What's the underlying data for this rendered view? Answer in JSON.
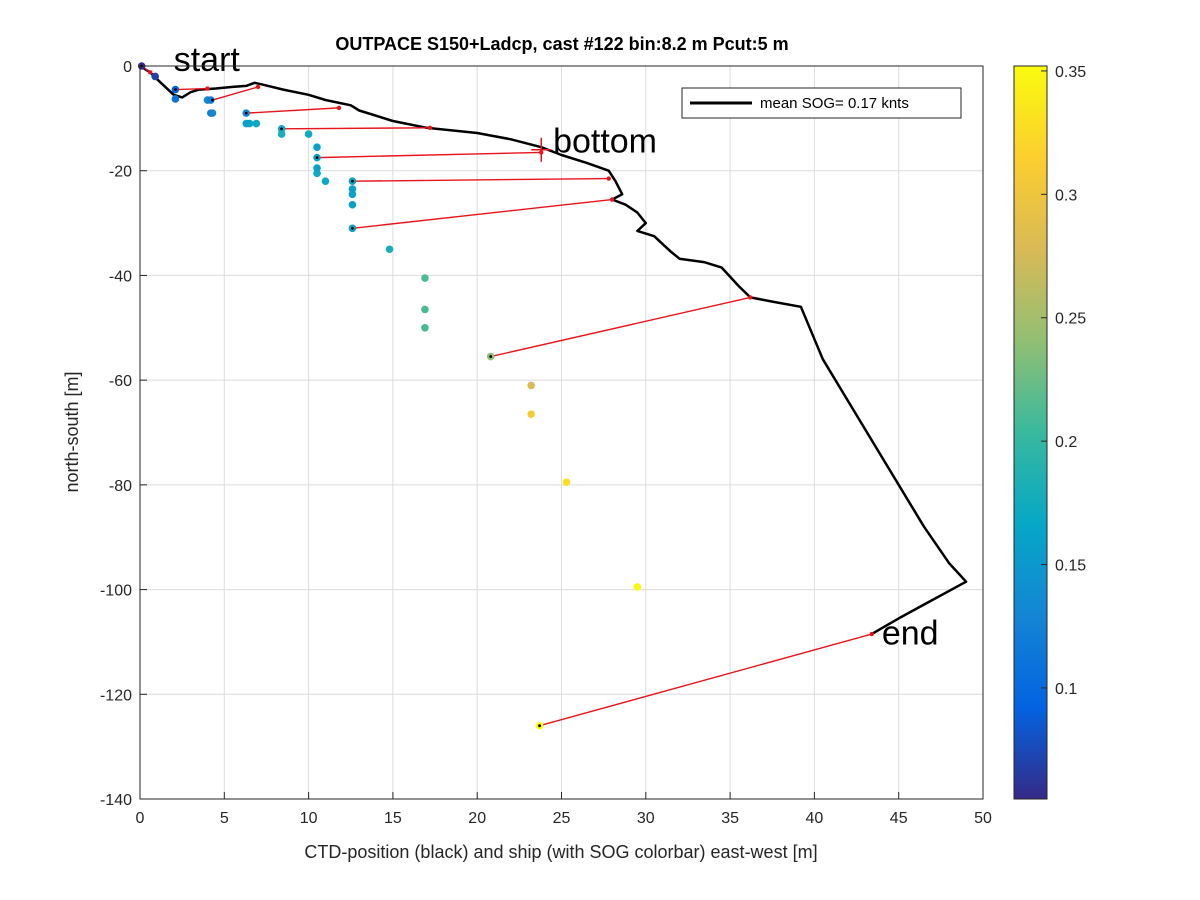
{
  "chart_data": {
    "type": "scatter",
    "title": "OUTPACE S150+Ladcp, cast #122 bin:8.2 m  Pcut:5 m",
    "xlabel": "CTD-position (black) and ship (with SOG colorbar) east-west [m]",
    "ylabel": "north-south [m]",
    "xlim": [
      0,
      50
    ],
    "ylim": [
      -140,
      0
    ],
    "xticks": [
      0,
      5,
      10,
      15,
      20,
      25,
      30,
      35,
      40,
      45,
      50
    ],
    "yticks": [
      0,
      -20,
      -40,
      -60,
      -80,
      -100,
      -120,
      -140
    ],
    "grid": true,
    "legend": {
      "position": "top-right",
      "entries": [
        "mean SOG=  0.17 knts"
      ]
    },
    "colorbar": {
      "range": [
        0.055,
        0.352
      ],
      "ticks": [
        0.1,
        0.15,
        0.2,
        0.25,
        0.3,
        0.35
      ],
      "colormap": [
        "#352a87",
        "#0363e1",
        "#1485d4",
        "#06a7c6",
        "#38b99e",
        "#92bf73",
        "#d9ba56",
        "#fcce2e",
        "#f9fb0e"
      ]
    },
    "annotations": [
      {
        "text": "start",
        "x": 2.0,
        "y": -1.0
      },
      {
        "text": "bottom",
        "x": 24.5,
        "y": -16.5
      },
      {
        "text": "end",
        "x": 44.0,
        "y": -110.5
      }
    ],
    "bottom_marker": {
      "x": 23.8,
      "y": -16.0
    },
    "ctd_track": {
      "name": "mean SOG=  0.17 knts",
      "x": [
        0,
        0.6,
        1.0,
        1.5,
        2.0,
        2.5,
        3.0,
        3.5,
        4.5,
        5.5,
        6.3,
        6.8,
        7.2,
        8.5,
        10.0,
        11.0,
        12.5,
        13.0,
        15.0,
        17.0,
        20.0,
        22.0,
        23.8,
        25.0,
        26.5,
        27.8,
        28.2,
        28.6,
        28.0,
        28.8,
        29.5,
        30.0,
        29.5,
        30.5,
        31.5,
        32.0,
        33.5,
        34.5,
        35.5,
        36.2,
        37.5,
        39.2,
        40.5,
        42.0,
        43.5,
        45.0,
        46.5,
        48.0,
        49.0,
        47.0,
        45.0,
        43.4
      ],
      "y": [
        0,
        -1.2,
        -2.5,
        -4.0,
        -5.5,
        -6.0,
        -5.0,
        -4.5,
        -4.3,
        -4.0,
        -3.8,
        -3.2,
        -3.5,
        -4.5,
        -5.5,
        -6.5,
        -7.5,
        -8.5,
        -10.5,
        -11.8,
        -12.8,
        -14.0,
        -15.5,
        -17.0,
        -18.5,
        -20.0,
        -22.0,
        -24.5,
        -25.5,
        -26.5,
        -28.0,
        -30.0,
        -31.5,
        -32.5,
        -35.5,
        -36.8,
        -37.5,
        -38.5,
        -42.0,
        -44.2,
        -45.0,
        -46.0,
        -56.0,
        -64.0,
        -72.0,
        -80.0,
        -88.0,
        -95.0,
        -98.5,
        -102.0,
        -105.5,
        -108.5
      ]
    },
    "ship_points": {
      "x": [
        0.1,
        0.9,
        2.1,
        2.1,
        4.0,
        4.2,
        4.2,
        4.3,
        6.3,
        6.3,
        6.5,
        6.9,
        8.4,
        8.4,
        10.0,
        10.5,
        10.5,
        10.5,
        10.5,
        11.0,
        12.6,
        12.6,
        12.6,
        12.6,
        12.6,
        14.8,
        16.9,
        16.9,
        16.9,
        20.8,
        23.2,
        23.2,
        25.3,
        29.5,
        23.7
      ],
      "y": [
        0,
        -2.0,
        -4.5,
        -6.3,
        -6.5,
        -6.5,
        -9.0,
        -9.0,
        -9.0,
        -11.0,
        -11.0,
        -11.0,
        -12.0,
        -13.0,
        -13.0,
        -15.5,
        -17.5,
        -19.5,
        -20.5,
        -22.0,
        -22.0,
        -23.5,
        -24.5,
        -26.5,
        -31.0,
        -35.0,
        -40.5,
        -46.5,
        -50.0,
        -55.5,
        -61.0,
        -66.5,
        -79.5,
        -99.5,
        -126.0
      ],
      "sog": [
        0.055,
        0.07,
        0.09,
        0.11,
        0.13,
        0.12,
        0.12,
        0.13,
        0.13,
        0.16,
        0.16,
        0.17,
        0.17,
        0.18,
        0.17,
        0.16,
        0.16,
        0.16,
        0.17,
        0.17,
        0.16,
        0.16,
        0.16,
        0.16,
        0.16,
        0.18,
        0.21,
        0.21,
        0.21,
        0.24,
        0.28,
        0.31,
        0.33,
        0.35,
        0.352
      ]
    },
    "connectors": [
      {
        "x1": 0.1,
        "y1": 0,
        "x2": 0.6,
        "y2": -1.2
      },
      {
        "x1": 2.1,
        "y1": -4.5,
        "x2": 4.0,
        "y2": -4.3
      },
      {
        "x1": 4.3,
        "y1": -6.5,
        "x2": 7.0,
        "y2": -4.0
      },
      {
        "x1": 6.3,
        "y1": -9.0,
        "x2": 11.8,
        "y2": -8.0
      },
      {
        "x1": 8.4,
        "y1": -12.0,
        "x2": 17.2,
        "y2": -11.8
      },
      {
        "x1": 10.5,
        "y1": -17.5,
        "x2": 23.8,
        "y2": -16.5
      },
      {
        "x1": 12.6,
        "y1": -22.0,
        "x2": 27.8,
        "y2": -21.5
      },
      {
        "x1": 12.6,
        "y1": -31.0,
        "x2": 28.0,
        "y2": -25.5
      },
      {
        "x1": 20.8,
        "y1": -55.5,
        "x2": 36.2,
        "y2": -44.2
      },
      {
        "x1": 23.7,
        "y1": -126.0,
        "x2": 43.4,
        "y2": -108.5
      }
    ]
  }
}
